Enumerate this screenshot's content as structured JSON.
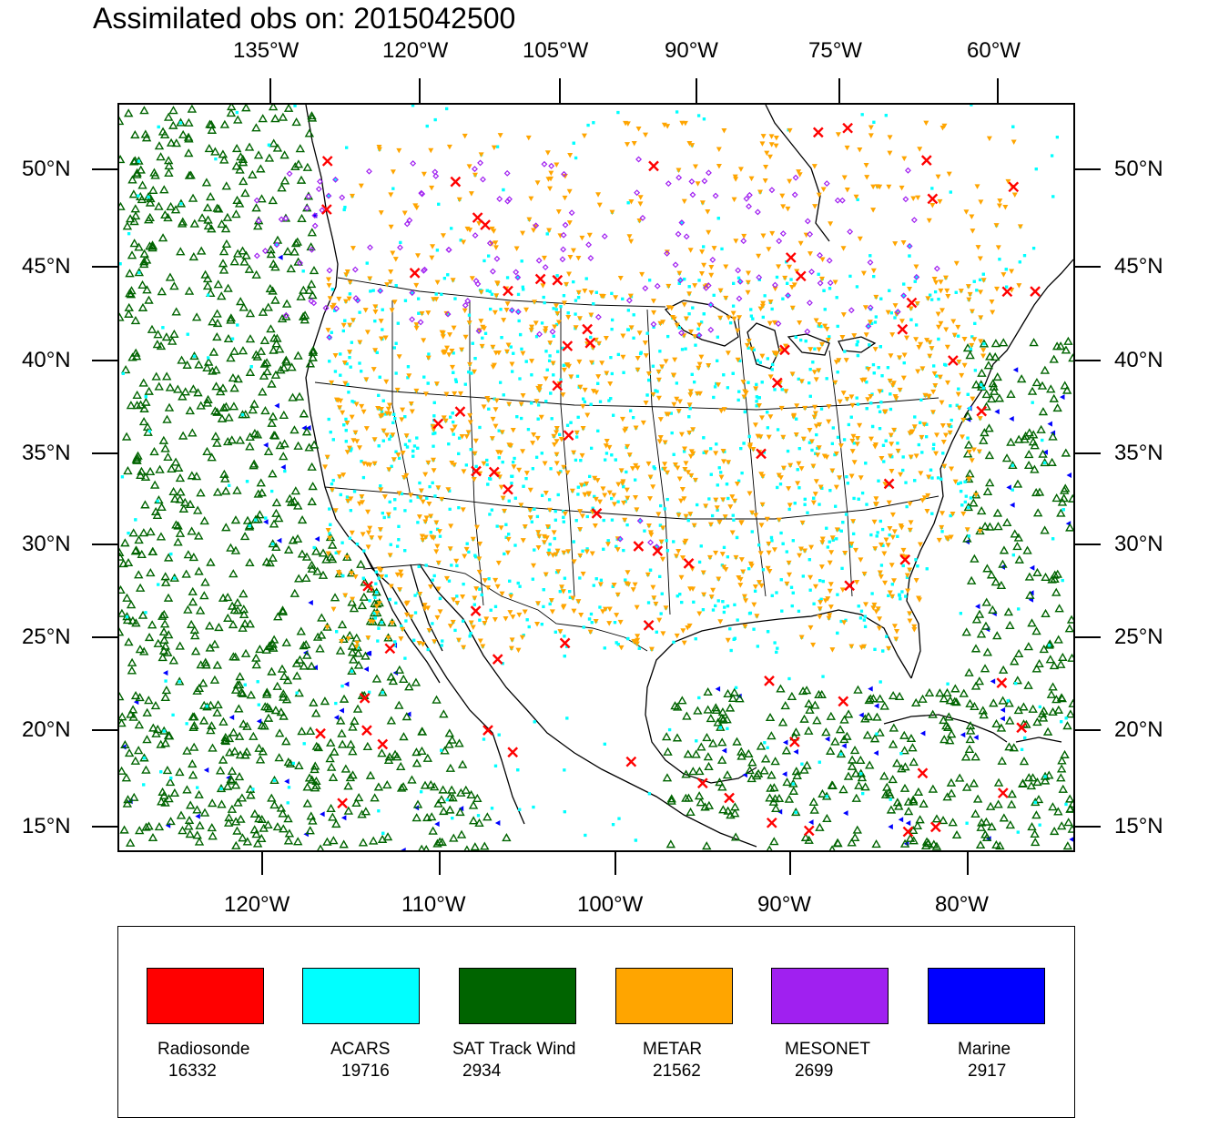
{
  "title": "Assimilated obs on: 2015042500",
  "top_axis_labels": [
    "135°W",
    "120°W",
    "105°W",
    "90°W",
    "75°W",
    "60°W"
  ],
  "bottom_axis_labels": [
    "120°W",
    "110°W",
    "100°W",
    "90°W",
    "80°W"
  ],
  "lat_labels": [
    "50°N",
    "45°N",
    "40°N",
    "35°N",
    "30°N",
    "25°N",
    "20°N",
    "15°N"
  ],
  "legend": [
    {
      "name": "Radiosonde",
      "count": "16332",
      "color": "#ff0000",
      "marker": "x-mark"
    },
    {
      "name": "ACARS",
      "count": "19716",
      "color": "#00ffff",
      "marker": "square-dot"
    },
    {
      "name": "SAT Track Wind",
      "count": "2934",
      "color": "#006400",
      "marker": "triangle-up"
    },
    {
      "name": "METAR",
      "count": "21562",
      "color": "#ffa500",
      "marker": "triangle-down"
    },
    {
      "name": "MESONET",
      "count": "2699",
      "color": "#a020f0",
      "marker": "diamond"
    },
    {
      "name": "Marine",
      "count": "2917",
      "color": "#0000ff",
      "marker": "triangle-left"
    }
  ]
}
